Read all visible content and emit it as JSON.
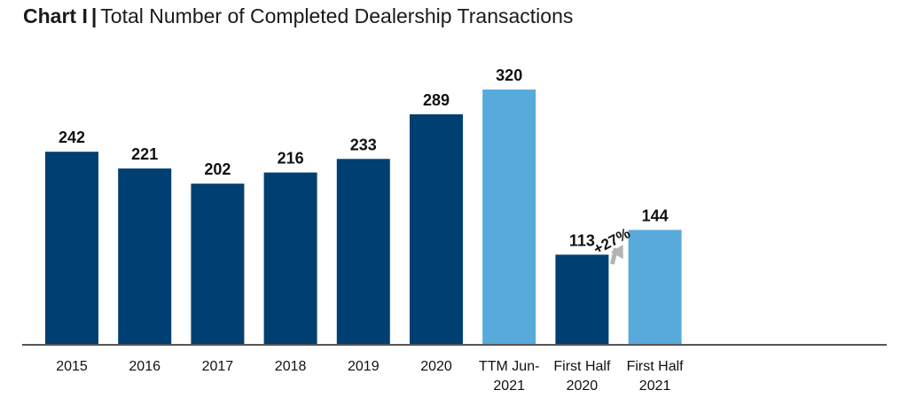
{
  "chart_data": {
    "type": "bar",
    "title_prefix": "Chart I",
    "title_separator": "|",
    "title": "Total Number of Completed Dealership Transactions",
    "xlabel": "",
    "ylabel": "",
    "ylim": [
      0,
      320
    ],
    "grid": false,
    "categories": [
      [
        "2015"
      ],
      [
        "2016"
      ],
      [
        "2017"
      ],
      [
        "2018"
      ],
      [
        "2019"
      ],
      [
        "2020"
      ],
      [
        "TTM  Jun-",
        "2021"
      ],
      [
        "First Half",
        "2020"
      ],
      [
        "First Half",
        "2021"
      ]
    ],
    "values": [
      242,
      221,
      202,
      216,
      233,
      289,
      320,
      113,
      144
    ],
    "data_labels": [
      "242",
      "221",
      "202",
      "216",
      "233",
      "289",
      "320",
      "113",
      "144"
    ],
    "bar_colors": [
      "#003f72",
      "#003f72",
      "#003f72",
      "#003f72",
      "#003f72",
      "#003f72",
      "#58aadb",
      "#003f72",
      "#58aadb"
    ],
    "annotation": {
      "text": "+27%",
      "from_category": "First Half 2020",
      "to_category": "First Half 2021",
      "arrow_color": "#b3b3b3"
    },
    "axis_color": "#555555"
  }
}
